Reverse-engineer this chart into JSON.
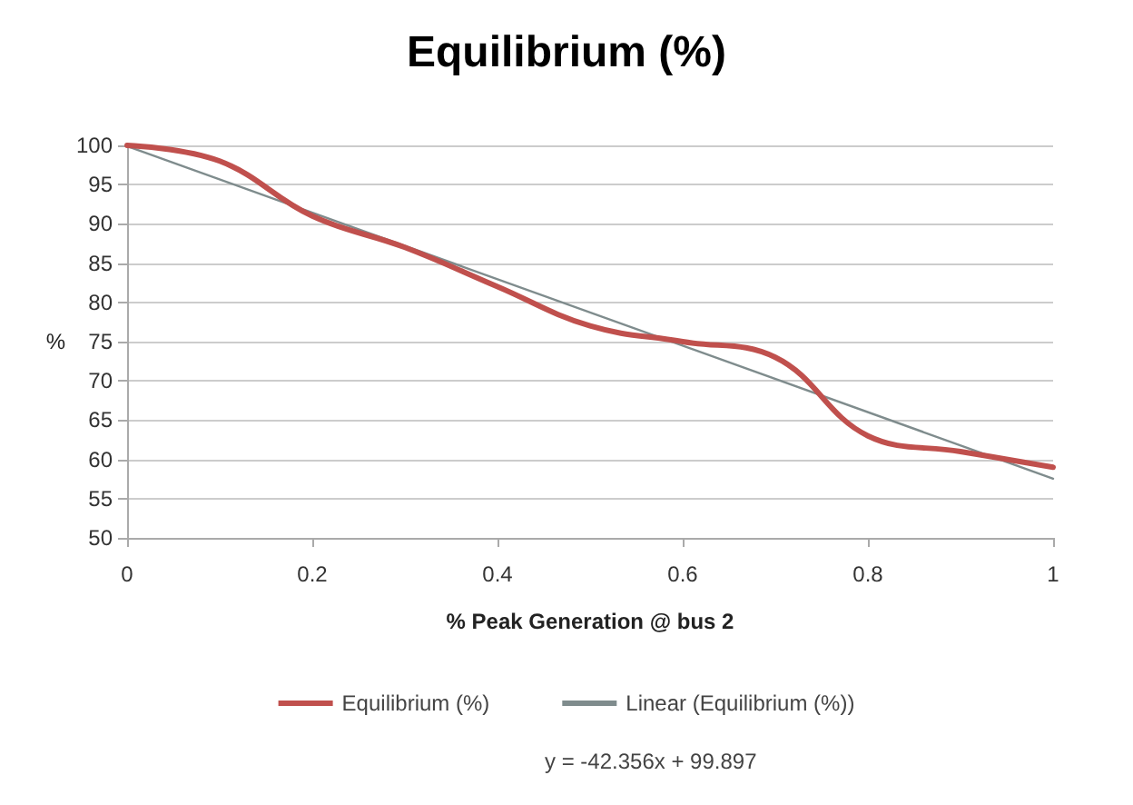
{
  "chart_data": {
    "type": "line",
    "title": "Equilibrium (%)",
    "xlabel": "% Peak Generation @ bus 2",
    "ylabel": "%",
    "x": [
      0,
      0.1,
      0.2,
      0.3,
      0.4,
      0.5,
      0.6,
      0.7,
      0.8,
      0.9,
      1
    ],
    "series": [
      {
        "name": "Equilibrium (%)",
        "color": "#c0504d",
        "values": [
          100,
          98,
          91,
          87,
          82,
          77,
          75,
          73,
          63,
          61,
          59
        ]
      },
      {
        "name": "Linear (Equilibrium (%))",
        "color": "#7f8c8d",
        "x": [
          0,
          1
        ],
        "values": [
          99.897,
          57.541
        ]
      }
    ],
    "xlim": [
      0,
      1
    ],
    "xticks": [
      0,
      0.2,
      0.4,
      0.6,
      0.8,
      1
    ],
    "ylim": [
      50,
      100
    ],
    "yticks": [
      50,
      55,
      60,
      65,
      70,
      75,
      80,
      85,
      90,
      95,
      100
    ],
    "grid": "y",
    "legend": "bottom",
    "marker": "none",
    "line_style": "solid",
    "annotations": [
      "y = -42.356x + 99.897"
    ]
  }
}
